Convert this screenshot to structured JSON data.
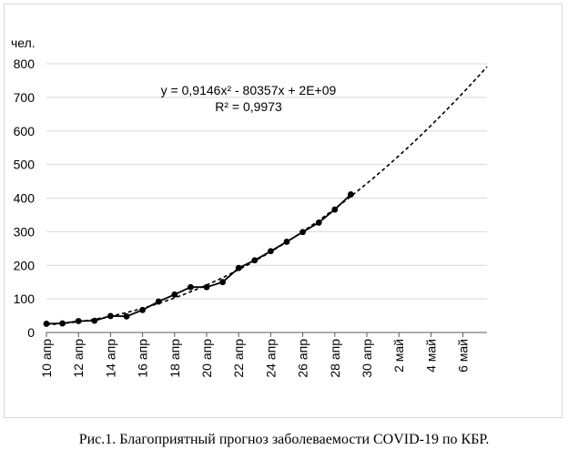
{
  "chart_data": {
    "type": "line",
    "ylabel": "чел.",
    "ylim": [
      0,
      800
    ],
    "yticks": [
      "0",
      "100",
      "200",
      "300",
      "400",
      "500",
      "600",
      "700",
      "800"
    ],
    "x_start": "10 апр",
    "xlim_days": [
      0,
      27.5
    ],
    "xtick_labels": [
      "10 апр",
      "12 апр",
      "14 апр",
      "16 апр",
      "18 апр",
      "20 апр",
      "22 апр",
      "24 апр",
      "26 апр",
      "28 апр",
      "30 апр",
      "2 май",
      "4 май",
      "6 май"
    ],
    "grid": "horizontal",
    "series": [
      {
        "kind": "observed",
        "x": [
          "10 апр",
          "11 апр",
          "12 апр",
          "13 апр",
          "14 апр",
          "15 апр",
          "16 апр",
          "17 апр",
          "18 апр",
          "19 апр",
          "20 апр",
          "21 апр",
          "22 апр",
          "23 апр",
          "24 апр",
          "25 апр",
          "26 апр",
          "27 апр",
          "28 апр",
          "29 апр"
        ],
        "values": [
          26,
          27,
          34,
          35,
          49,
          48,
          67,
          92,
          113,
          135,
          135,
          150,
          192,
          215,
          242,
          270,
          299,
          327,
          366,
          411
        ]
      },
      {
        "kind": "trend",
        "style": "dashed",
        "equation": "y = 0,9146x² - 80357x + 2E+09",
        "r2": "R² = 0,9973"
      }
    ],
    "caption": "Рис.1. Благоприятный прогноз заболеваемости COVID-19 по КБР."
  }
}
